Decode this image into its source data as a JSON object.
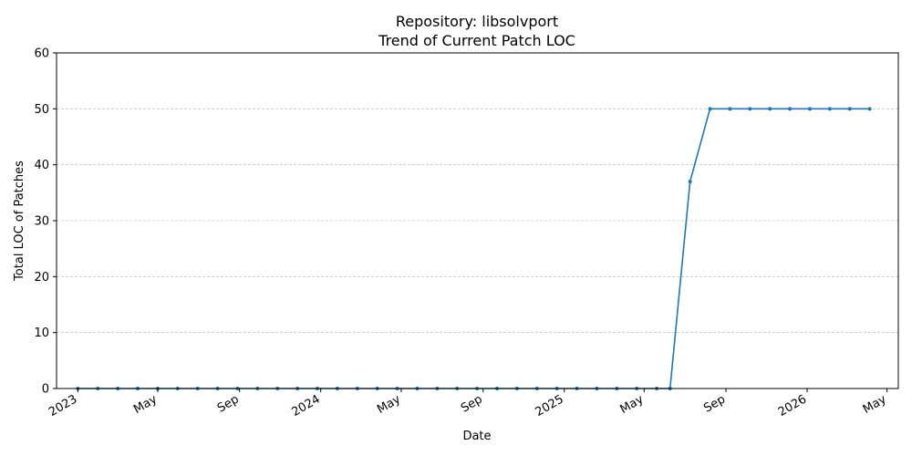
{
  "chart_data": {
    "type": "line",
    "title": "Repository: libsolvport",
    "subtitle": "Trend of Current Patch LOC",
    "xlabel": "Date",
    "ylabel": "Total LOC of Patches",
    "ylim": [
      0,
      60
    ],
    "xlim": [
      "2022-11-30",
      "2026-05-18"
    ],
    "yticks": [
      0,
      10,
      20,
      30,
      40,
      50,
      60
    ],
    "xticks": [
      {
        "date": "2023-01-01",
        "label": "2023"
      },
      {
        "date": "2023-05-01",
        "label": "May"
      },
      {
        "date": "2023-09-01",
        "label": "Sep"
      },
      {
        "date": "2024-01-01",
        "label": "2024"
      },
      {
        "date": "2024-05-01",
        "label": "May"
      },
      {
        "date": "2024-09-01",
        "label": "Sep"
      },
      {
        "date": "2025-01-01",
        "label": "2025"
      },
      {
        "date": "2025-05-01",
        "label": "May"
      },
      {
        "date": "2025-09-01",
        "label": "Sep"
      },
      {
        "date": "2026-01-01",
        "label": "2026"
      },
      {
        "date": "2026-05-01",
        "label": "May"
      }
    ],
    "grid": "y-dashed",
    "color": "#1f77b4",
    "series": [
      {
        "x": [
          "2023-01-01",
          "2023-01-31",
          "2023-03-02",
          "2023-04-01",
          "2023-05-01",
          "2023-05-31",
          "2023-06-30",
          "2023-07-30",
          "2023-08-29",
          "2023-09-28",
          "2023-10-28",
          "2023-11-27",
          "2023-12-27",
          "2024-01-26",
          "2024-02-25",
          "2024-03-26",
          "2024-04-25",
          "2024-05-25",
          "2024-06-24",
          "2024-07-24",
          "2024-08-23",
          "2024-09-22",
          "2024-10-22",
          "2024-11-21",
          "2024-12-21",
          "2025-01-20",
          "2025-02-19",
          "2025-03-21",
          "2025-04-20",
          "2025-05-20",
          "2025-06-09",
          "2025-07-09",
          "2025-08-08",
          "2025-09-07",
          "2025-10-07",
          "2025-11-06",
          "2025-12-06",
          "2026-01-05",
          "2026-02-04",
          "2026-03-06",
          "2026-04-05"
        ],
        "values": [
          0,
          0,
          0,
          0,
          0,
          0,
          0,
          0,
          0,
          0,
          0,
          0,
          0,
          0,
          0,
          0,
          0,
          0,
          0,
          0,
          0,
          0,
          0,
          0,
          0,
          0,
          0,
          0,
          0,
          0,
          0,
          37,
          50,
          50,
          50,
          50,
          50,
          50,
          50,
          50,
          50
        ]
      }
    ]
  }
}
